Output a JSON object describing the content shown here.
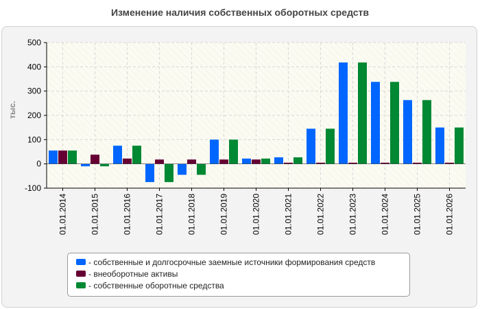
{
  "chart_data": {
    "type": "bar",
    "title": "Изменение наличия собственных оборотных средств",
    "ylabel": "тыс.",
    "xlabel": "",
    "ylim": [
      -100,
      500
    ],
    "yticks": [
      -100,
      0,
      100,
      200,
      300,
      400,
      500
    ],
    "grid": true,
    "legend_position": "bottom",
    "categories": [
      "01.01.2014",
      "01.01.2015",
      "01.01.2016",
      "01.01.2017",
      "01.01.2018",
      "01.01.2019",
      "01.01.2020",
      "01.01.2021",
      "01.01.2022",
      "01.01.2023",
      "01.01.2024",
      "01.01.2025",
      "01.01.2026"
    ],
    "series": [
      {
        "name": "- собственные и долгосрочные заемные источники формирования средств",
        "color": "#0066ff",
        "values": [
          55,
          -10,
          75,
          -75,
          -45,
          100,
          22,
          27,
          145,
          418,
          338,
          263,
          150
        ]
      },
      {
        "name": "- внеоборотные активы",
        "color": "#660033",
        "values": [
          55,
          38,
          22,
          18,
          18,
          18,
          18,
          5,
          5,
          5,
          5,
          5,
          5
        ]
      },
      {
        "name": "- собственные оборотные средства",
        "color": "#008833",
        "values": [
          55,
          -10,
          75,
          -75,
          -45,
          100,
          22,
          27,
          145,
          418,
          338,
          263,
          150
        ]
      }
    ]
  }
}
